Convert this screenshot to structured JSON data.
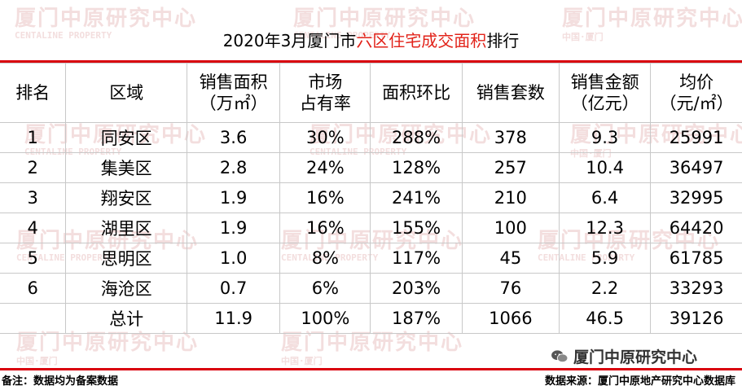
{
  "watermark": {
    "cn": "厦门中原研究中心",
    "en": "CENTALINE PROPERTY",
    "city": "中国·厦门"
  },
  "title": {
    "prefix": "2020年3月厦门市",
    "highlight": "六区住宅成交面积",
    "suffix": "排行"
  },
  "table": {
    "headers": [
      [
        "排名"
      ],
      [
        "区域"
      ],
      [
        "销售面积",
        "（万㎡）"
      ],
      [
        "市场",
        "占有率"
      ],
      [
        "面积环比"
      ],
      [
        "销售套数"
      ],
      [
        "销售金额",
        "（亿元）"
      ],
      [
        "均价",
        "（元/㎡）"
      ]
    ],
    "rows": [
      [
        "1",
        "同安区",
        "3.6",
        "30%",
        "288%",
        "378",
        "9.3",
        "25991"
      ],
      [
        "2",
        "集美区",
        "2.8",
        "24%",
        "128%",
        "257",
        "10.4",
        "36497"
      ],
      [
        "3",
        "翔安区",
        "1.9",
        "16%",
        "241%",
        "210",
        "6.4",
        "32995"
      ],
      [
        "4",
        "湖里区",
        "1.9",
        "16%",
        "155%",
        "100",
        "12.3",
        "64420"
      ],
      [
        "5",
        "思明区",
        "1.0",
        "8%",
        "117%",
        "45",
        "5.9",
        "61785"
      ],
      [
        "6",
        "海沧区",
        "0.7",
        "6%",
        "203%",
        "76",
        "2.2",
        "33293"
      ],
      [
        "",
        "总计",
        "11.9",
        "100%",
        "187%",
        "1066",
        "46.5",
        "39126"
      ]
    ]
  },
  "footer": {
    "note": "备注：数据均为备案数据",
    "source": "数据来源：厦门中原地产研究中心数据库"
  },
  "brand": {
    "label": "厦门中原研究中心",
    "icon": "wechat-icon"
  },
  "colors": {
    "accent_red": "#d9000d",
    "highlight_text": "#e2231a",
    "watermark": "#f3dede"
  }
}
